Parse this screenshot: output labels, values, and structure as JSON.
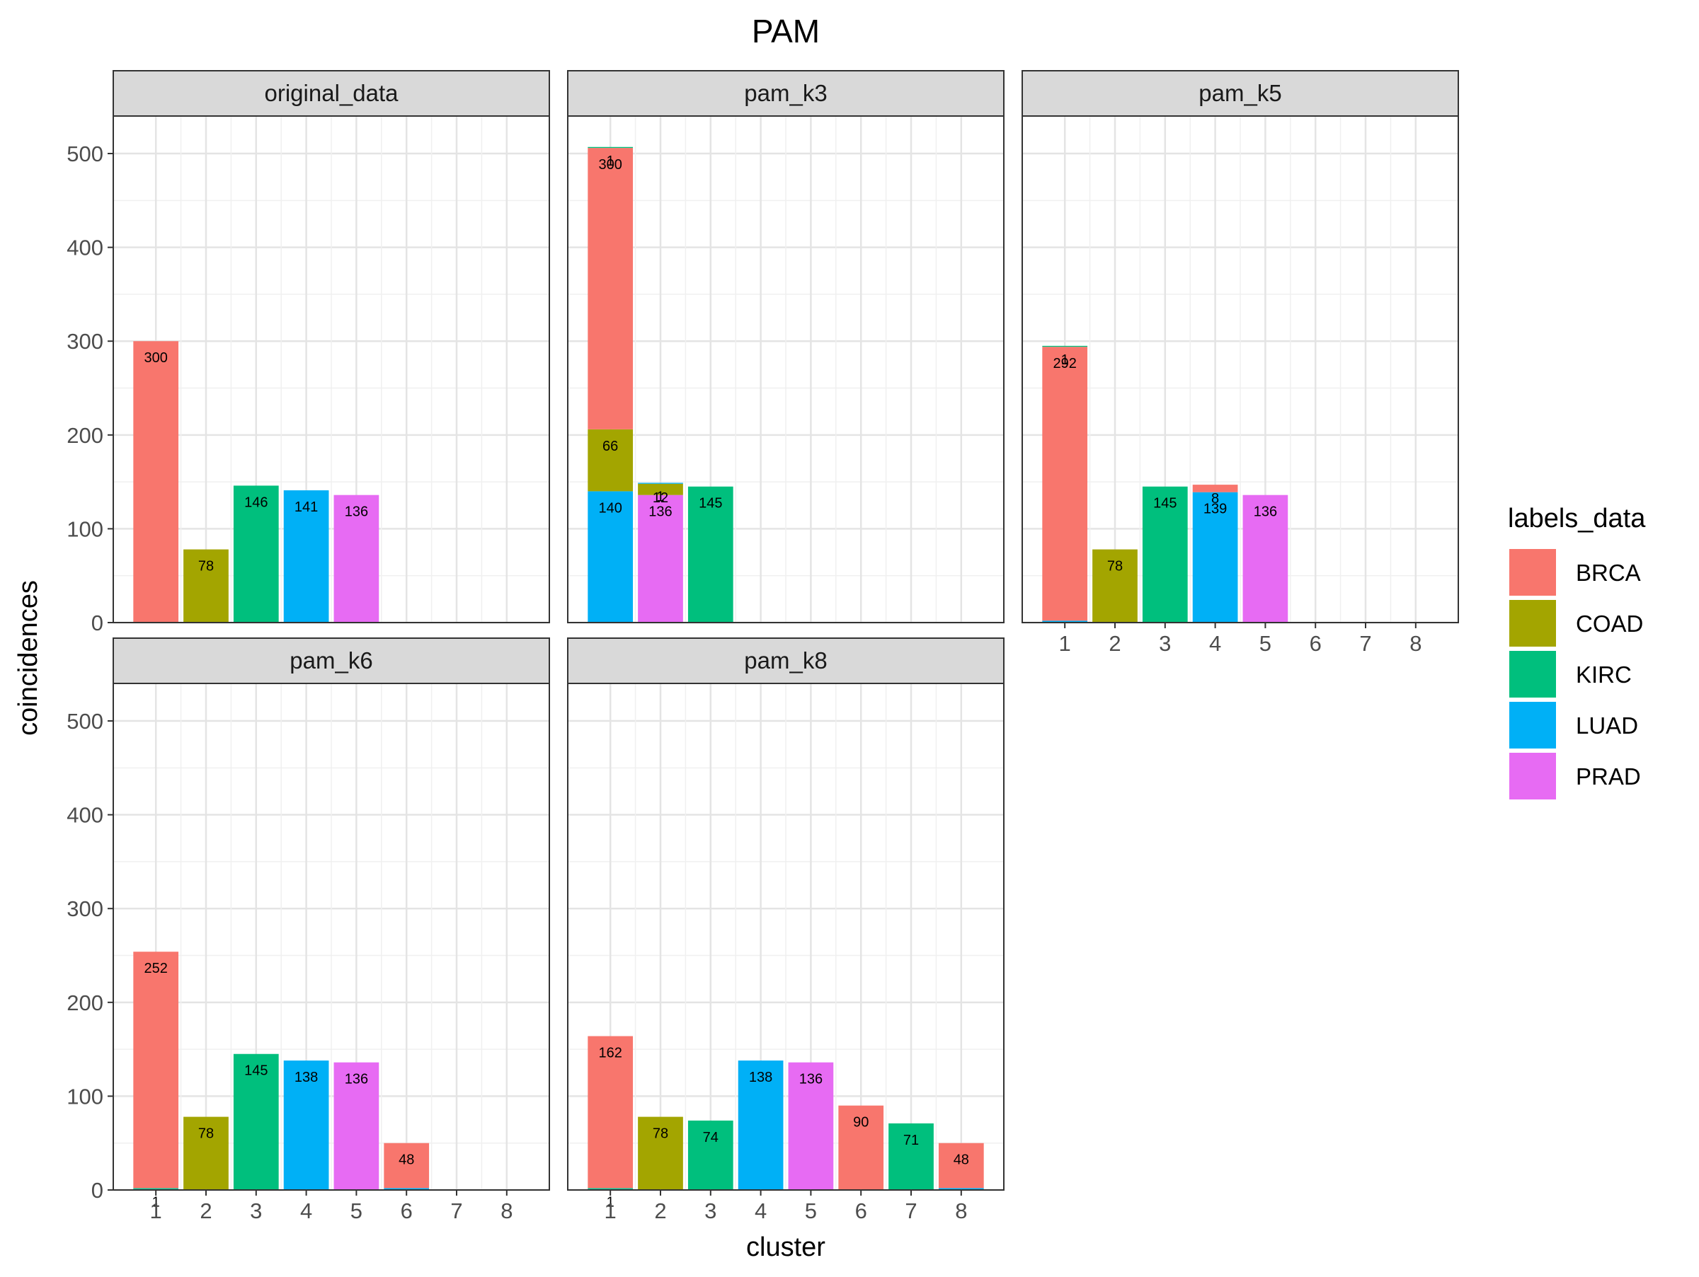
{
  "chart_data": {
    "type": "bar",
    "title": "PAM",
    "xlabel": "cluster",
    "ylabel": "coincidences",
    "ylim": [
      0,
      540
    ],
    "yticks": [
      0,
      100,
      200,
      300,
      400,
      500
    ],
    "x_categories": [
      "1",
      "2",
      "3",
      "4",
      "5",
      "6",
      "7",
      "8"
    ],
    "stacked": true,
    "grid": true,
    "legend": {
      "title": "labels_data",
      "position": "right",
      "items": [
        {
          "name": "BRCA",
          "color": "#F8766D"
        },
        {
          "name": "COAD",
          "color": "#A3A500"
        },
        {
          "name": "KIRC",
          "color": "#00BF7D"
        },
        {
          "name": "LUAD",
          "color": "#00B0F6"
        },
        {
          "name": "PRAD",
          "color": "#E76BF3"
        }
      ]
    },
    "panels": [
      {
        "name": "original_data",
        "bars": [
          {
            "cluster": 1,
            "segments": [
              {
                "label": "BRCA",
                "value": 300
              }
            ]
          },
          {
            "cluster": 2,
            "segments": [
              {
                "label": "COAD",
                "value": 78
              }
            ]
          },
          {
            "cluster": 3,
            "segments": [
              {
                "label": "KIRC",
                "value": 146
              }
            ]
          },
          {
            "cluster": 4,
            "segments": [
              {
                "label": "LUAD",
                "value": 141
              }
            ]
          },
          {
            "cluster": 5,
            "segments": [
              {
                "label": "PRAD",
                "value": 136
              }
            ]
          }
        ]
      },
      {
        "name": "pam_k3",
        "bars": [
          {
            "cluster": 1,
            "segments": [
              {
                "label": "LUAD",
                "value": 140
              },
              {
                "label": "COAD",
                "value": 66
              },
              {
                "label": "BRCA",
                "value": 300
              },
              {
                "label": "KIRC",
                "value": 1
              }
            ]
          },
          {
            "cluster": 2,
            "segments": [
              {
                "label": "PRAD",
                "value": 136
              },
              {
                "label": "COAD",
                "value": 12
              },
              {
                "label": "LUAD",
                "value": 1
              }
            ]
          },
          {
            "cluster": 3,
            "segments": [
              {
                "label": "KIRC",
                "value": 145
              }
            ]
          }
        ]
      },
      {
        "name": "pam_k5",
        "bars": [
          {
            "cluster": 1,
            "segments": [
              {
                "label": "LUAD",
                "value": 2
              },
              {
                "label": "BRCA",
                "value": 292
              },
              {
                "label": "KIRC",
                "value": 1
              }
            ]
          },
          {
            "cluster": 2,
            "segments": [
              {
                "label": "COAD",
                "value": 78
              }
            ]
          },
          {
            "cluster": 3,
            "segments": [
              {
                "label": "KIRC",
                "value": 145
              }
            ]
          },
          {
            "cluster": 4,
            "segments": [
              {
                "label": "LUAD",
                "value": 139
              },
              {
                "label": "BRCA",
                "value": 8
              }
            ]
          },
          {
            "cluster": 5,
            "segments": [
              {
                "label": "PRAD",
                "value": 136
              }
            ]
          }
        ]
      },
      {
        "name": "pam_k6",
        "bars": [
          {
            "cluster": 1,
            "segments": [
              {
                "label": "LUAD",
                "value": 1
              },
              {
                "label": "KIRC",
                "value": 1
              },
              {
                "label": "BRCA",
                "value": 252
              }
            ]
          },
          {
            "cluster": 2,
            "segments": [
              {
                "label": "COAD",
                "value": 78
              }
            ]
          },
          {
            "cluster": 3,
            "segments": [
              {
                "label": "KIRC",
                "value": 145
              }
            ]
          },
          {
            "cluster": 4,
            "segments": [
              {
                "label": "LUAD",
                "value": 138
              }
            ]
          },
          {
            "cluster": 5,
            "segments": [
              {
                "label": "PRAD",
                "value": 136
              }
            ]
          },
          {
            "cluster": 6,
            "segments": [
              {
                "label": "LUAD",
                "value": 2
              },
              {
                "label": "BRCA",
                "value": 48
              }
            ]
          }
        ]
      },
      {
        "name": "pam_k8",
        "bars": [
          {
            "cluster": 1,
            "segments": [
              {
                "label": "LUAD",
                "value": 1
              },
              {
                "label": "KIRC",
                "value": 1
              },
              {
                "label": "BRCA",
                "value": 162
              }
            ]
          },
          {
            "cluster": 2,
            "segments": [
              {
                "label": "COAD",
                "value": 78
              }
            ]
          },
          {
            "cluster": 3,
            "segments": [
              {
                "label": "KIRC",
                "value": 74
              }
            ]
          },
          {
            "cluster": 4,
            "segments": [
              {
                "label": "LUAD",
                "value": 138
              }
            ]
          },
          {
            "cluster": 5,
            "segments": [
              {
                "label": "PRAD",
                "value": 136
              }
            ]
          },
          {
            "cluster": 6,
            "segments": [
              {
                "label": "BRCA",
                "value": 90
              }
            ]
          },
          {
            "cluster": 7,
            "segments": [
              {
                "label": "KIRC",
                "value": 71
              }
            ]
          },
          {
            "cluster": 8,
            "segments": [
              {
                "label": "LUAD",
                "value": 2
              },
              {
                "label": "BRCA",
                "value": 48
              }
            ]
          }
        ]
      }
    ]
  }
}
